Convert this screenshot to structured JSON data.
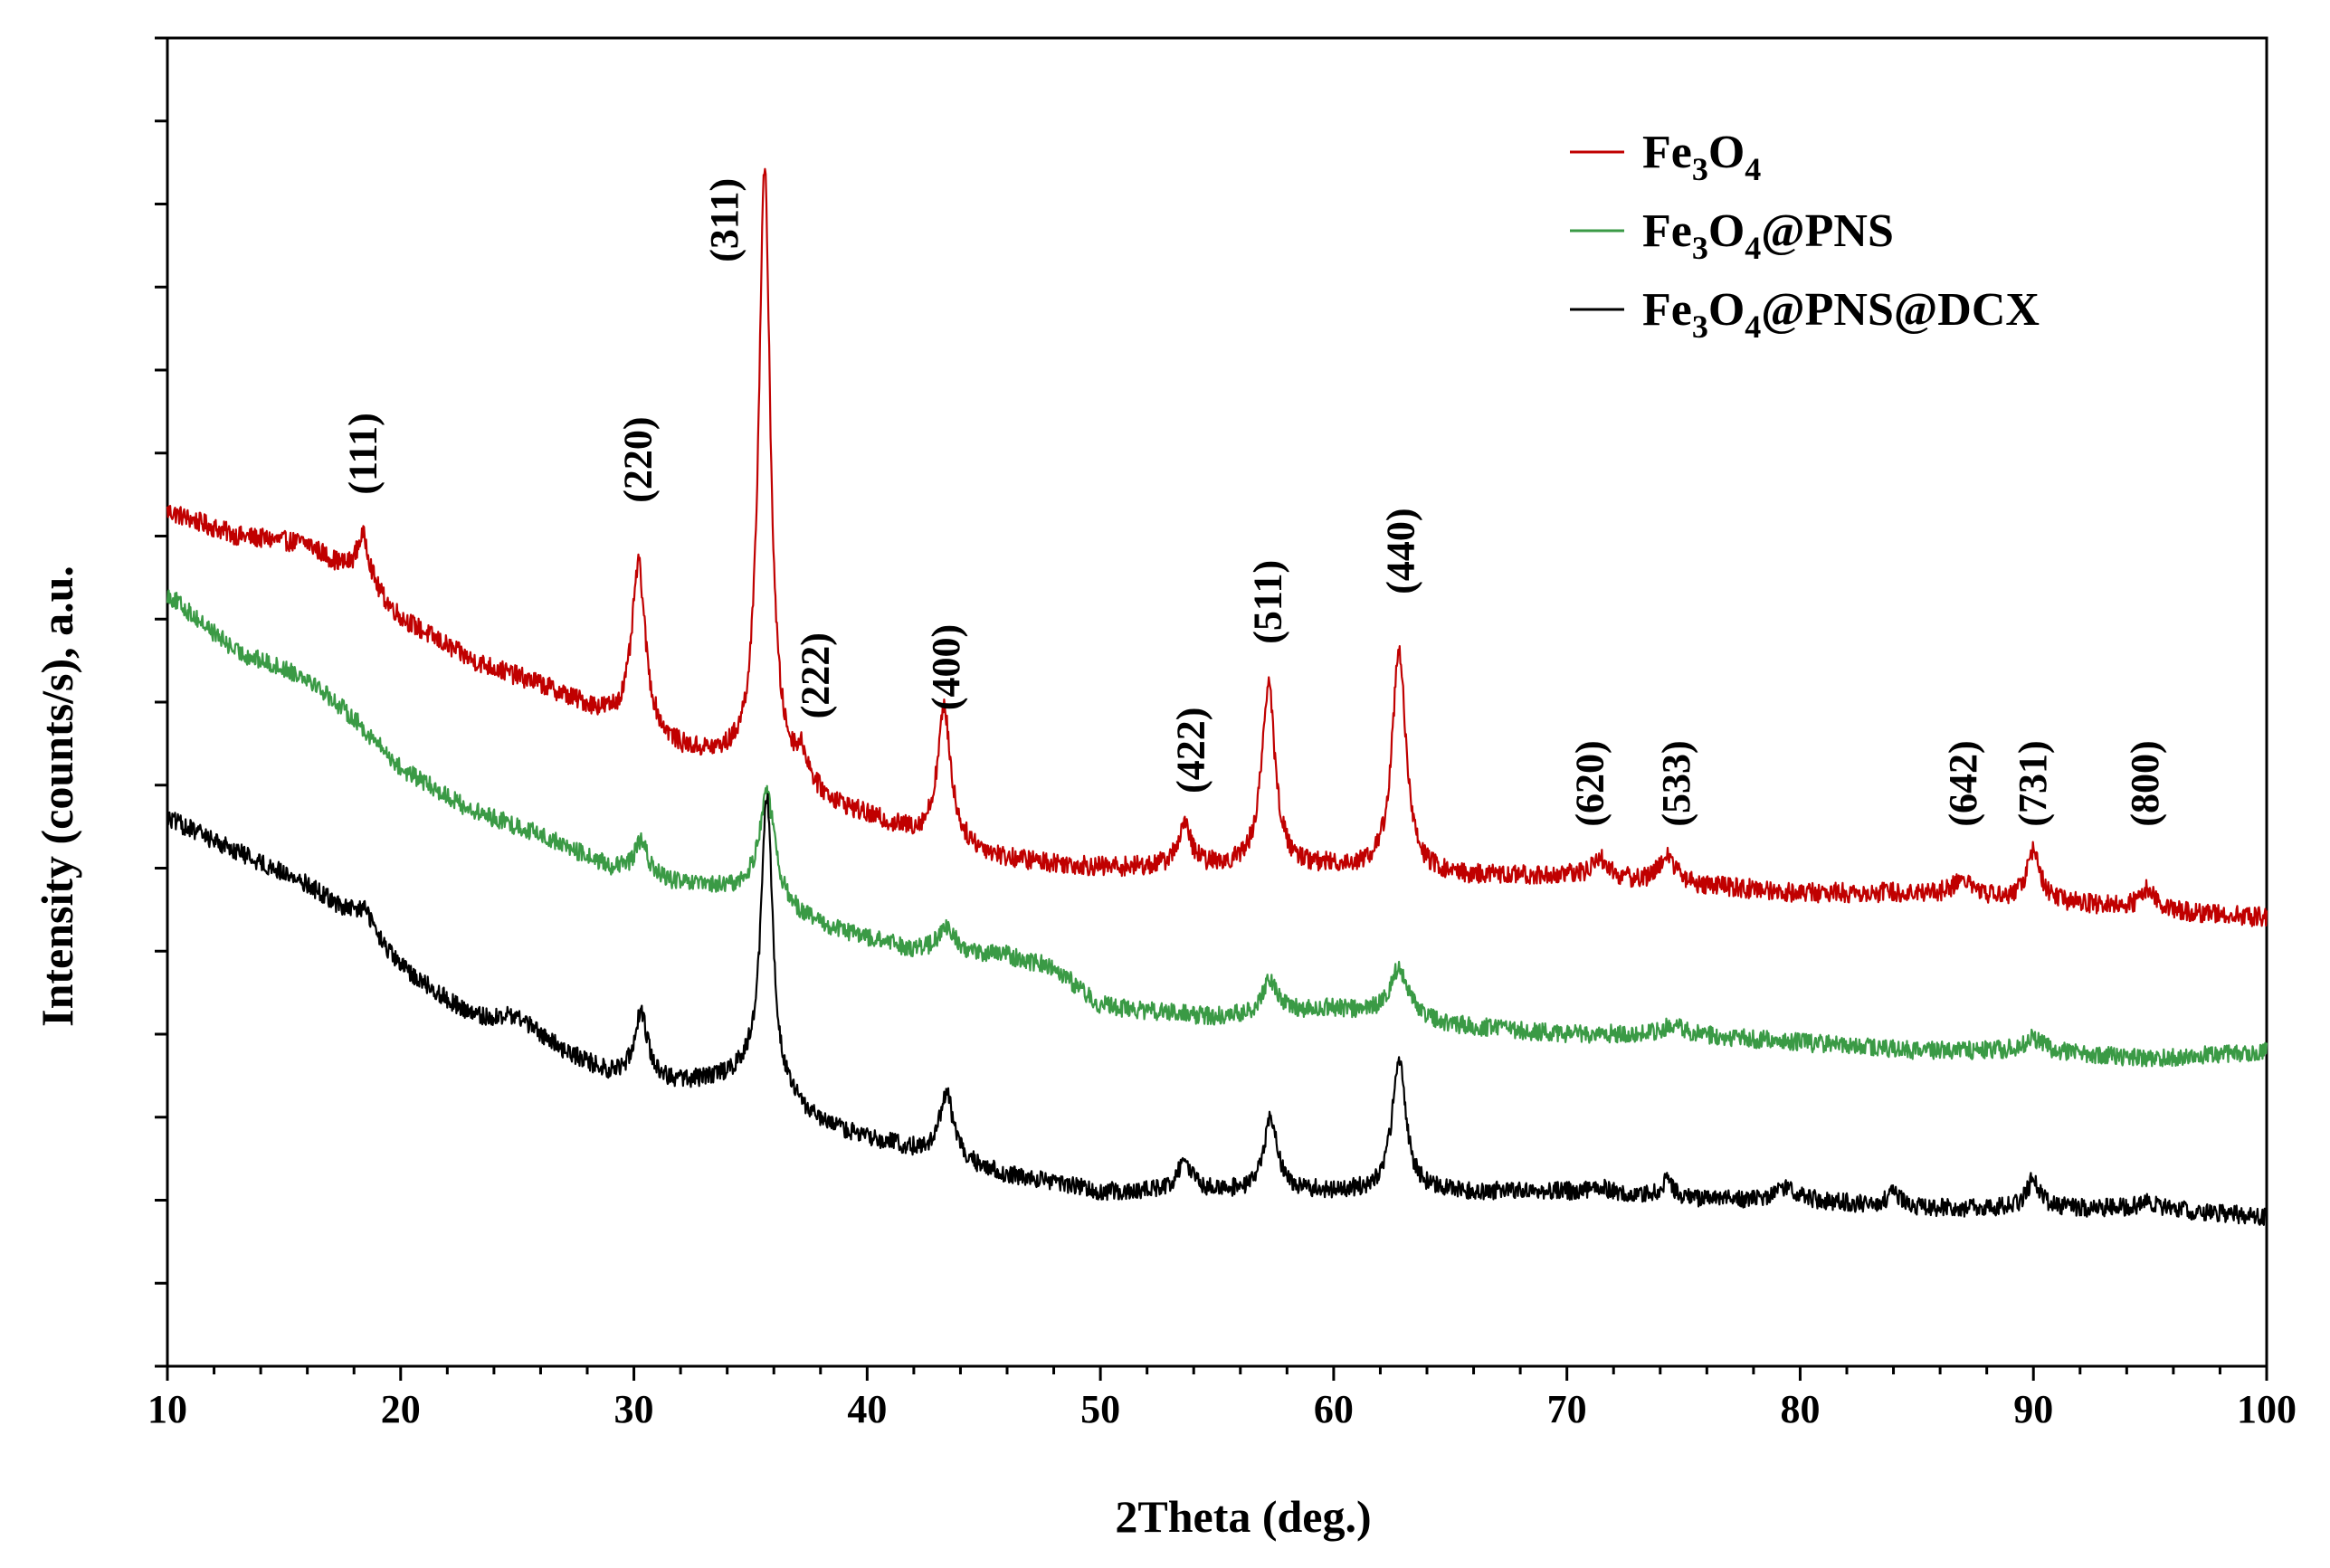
{
  "chart_data": {
    "type": "line",
    "title": "",
    "xlabel": "2Theta (deg.)",
    "ylabel": "Intensity (counts/s), a.u.",
    "xlim": [
      10,
      100
    ],
    "ylim": [
      0,
      16
    ],
    "x_ticks": [
      10,
      20,
      30,
      40,
      50,
      60,
      70,
      80,
      90,
      100
    ],
    "y_tick_labels_shown": false,
    "legend_position": "top-right",
    "series": [
      {
        "name": "Fe3O4",
        "legend_main": "Fe",
        "legend_sub1": "3",
        "legend_mid": "O",
        "legend_sub2": "4",
        "legend_suffix": "",
        "color": "#c00000",
        "baseline": [
          [
            10,
            10.3
          ],
          [
            13,
            10.0
          ],
          [
            16,
            9.9
          ],
          [
            18,
            9.5
          ],
          [
            20,
            9.0
          ],
          [
            23,
            8.5
          ],
          [
            26,
            8.2
          ],
          [
            29,
            7.8
          ],
          [
            32,
            7.4
          ],
          [
            35,
            7.2
          ],
          [
            38,
            6.8
          ],
          [
            42,
            6.4
          ],
          [
            46,
            6.1
          ],
          [
            50,
            6.0
          ],
          [
            55,
            6.0
          ],
          [
            60,
            6.0
          ],
          [
            65,
            5.9
          ],
          [
            70,
            5.9
          ],
          [
            75,
            5.8
          ],
          [
            80,
            5.7
          ],
          [
            85,
            5.7
          ],
          [
            90,
            5.6
          ],
          [
            95,
            5.5
          ],
          [
            100,
            5.4
          ]
        ],
        "peaks": [
          [
            18.4,
            0.6,
            0.35
          ],
          [
            30.2,
            2.0,
            0.35
          ],
          [
            35.6,
            7.3,
            0.3
          ],
          [
            37.2,
            0.35,
            0.35
          ],
          [
            43.3,
            1.6,
            0.35
          ],
          [
            53.6,
            0.5,
            0.35
          ],
          [
            57.2,
            2.2,
            0.35
          ],
          [
            62.8,
            2.7,
            0.35
          ],
          [
            71.4,
            0.25,
            0.4
          ],
          [
            74.3,
            0.35,
            0.4
          ],
          [
            87.0,
            0.2,
            0.5
          ],
          [
            90.0,
            0.6,
            0.35
          ],
          [
            94.9,
            0.25,
            0.4
          ]
        ],
        "noise": 0.12
      },
      {
        "name": "Fe3O4@PNS",
        "legend_main": "Fe",
        "legend_sub1": "3",
        "legend_mid": "O",
        "legend_sub2": "4",
        "legend_suffix": "@PNS",
        "color": "#3a9a45",
        "baseline": [
          [
            10,
            9.3
          ],
          [
            13,
            8.6
          ],
          [
            16,
            8.3
          ],
          [
            18,
            7.8
          ],
          [
            20,
            7.2
          ],
          [
            23,
            6.7
          ],
          [
            26,
            6.4
          ],
          [
            29,
            6.0
          ],
          [
            32,
            5.8
          ],
          [
            35,
            5.7
          ],
          [
            38,
            5.3
          ],
          [
            42,
            5.0
          ],
          [
            46,
            4.9
          ],
          [
            50,
            4.3
          ],
          [
            55,
            4.2
          ],
          [
            60,
            4.3
          ],
          [
            65,
            4.1
          ],
          [
            70,
            4.0
          ],
          [
            75,
            4.0
          ],
          [
            80,
            3.9
          ],
          [
            85,
            3.8
          ],
          [
            90,
            3.8
          ],
          [
            95,
            3.7
          ],
          [
            100,
            3.8
          ]
        ],
        "peaks": [
          [
            30.3,
            0.4,
            0.35
          ],
          [
            35.7,
            1.3,
            0.4
          ],
          [
            43.4,
            0.3,
            0.45
          ],
          [
            48.0,
            0.2,
            1.2
          ],
          [
            57.3,
            0.4,
            0.4
          ],
          [
            62.8,
            0.6,
            0.5
          ],
          [
            74.5,
            0.1,
            0.5
          ],
          [
            90.0,
            0.15,
            0.5
          ]
        ],
        "noise": 0.11
      },
      {
        "name": "Fe3O4@PNS@DCX",
        "legend_main": "Fe",
        "legend_sub1": "3",
        "legend_mid": "O",
        "legend_sub2": "4",
        "legend_suffix": "@PNS@DCX",
        "color": "#000000",
        "baseline": [
          [
            10,
            6.6
          ],
          [
            13,
            6.2
          ],
          [
            16,
            5.8
          ],
          [
            18,
            5.4
          ],
          [
            20,
            4.8
          ],
          [
            23,
            4.2
          ],
          [
            26,
            3.9
          ],
          [
            29,
            3.5
          ],
          [
            32,
            3.4
          ],
          [
            35,
            3.5
          ],
          [
            38,
            2.9
          ],
          [
            42,
            2.6
          ],
          [
            46,
            2.3
          ],
          [
            50,
            2.1
          ],
          [
            55,
            2.1
          ],
          [
            60,
            2.1
          ],
          [
            65,
            2.1
          ],
          [
            70,
            2.1
          ],
          [
            75,
            2.0
          ],
          [
            80,
            2.0
          ],
          [
            85,
            1.9
          ],
          [
            90,
            1.9
          ],
          [
            95,
            1.9
          ],
          [
            100,
            1.8
          ]
        ],
        "peaks": [
          [
            18.5,
            0.25,
            0.4
          ],
          [
            25.0,
            0.2,
            1.0
          ],
          [
            30.3,
            0.8,
            0.35
          ],
          [
            35.7,
            3.5,
            0.3
          ],
          [
            43.4,
            0.8,
            0.35
          ],
          [
            53.6,
            0.35,
            0.4
          ],
          [
            57.3,
            0.9,
            0.35
          ],
          [
            62.8,
            1.6,
            0.35
          ],
          [
            71.4,
            0.1,
            0.4
          ],
          [
            74.3,
            0.2,
            0.4
          ],
          [
            79.4,
            0.15,
            0.5
          ],
          [
            84.0,
            0.15,
            0.4
          ],
          [
            90.0,
            0.35,
            0.35
          ],
          [
            94.9,
            0.1,
            0.4
          ]
        ],
        "noise": 0.11
      }
    ],
    "annotations": [
      {
        "text": "(111)",
        "x": 18.4,
        "y": 10.5
      },
      {
        "text": "(220)",
        "x": 30.2,
        "y": 10.4
      },
      {
        "text": "(311)",
        "x": 33.9,
        "y": 13.3
      },
      {
        "text": "(222)",
        "x": 37.8,
        "y": 7.8
      },
      {
        "text": "(400)",
        "x": 43.4,
        "y": 7.9
      },
      {
        "text": "(422)",
        "x": 53.9,
        "y": 6.9
      },
      {
        "text": "(511)",
        "x": 57.2,
        "y": 8.7
      },
      {
        "text": "(440)",
        "x": 62.9,
        "y": 9.3
      },
      {
        "text": "(620)",
        "x": 71.0,
        "y": 6.5
      },
      {
        "text": "(533)",
        "x": 74.7,
        "y": 6.5
      },
      {
        "text": "(642)",
        "x": 87.0,
        "y": 6.5
      },
      {
        "text": "(731)",
        "x": 90.0,
        "y": 6.5
      },
      {
        "text": "(800)",
        "x": 94.8,
        "y": 6.5
      }
    ]
  }
}
